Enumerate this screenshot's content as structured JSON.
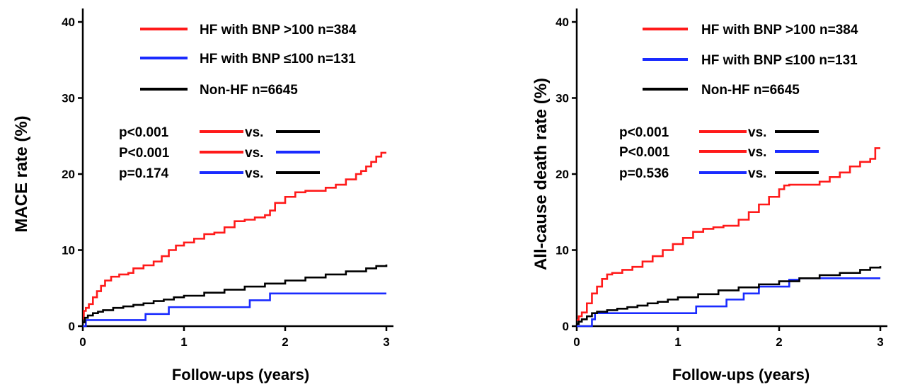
{
  "colors": {
    "red": "#ff1a1a",
    "blue": "#1a2bff",
    "black": "#000000"
  },
  "chart_data": [
    {
      "type": "line",
      "step": true,
      "title": "",
      "xlabel": "Follow-ups (years)",
      "ylabel": "MACE rate (%)",
      "xlim": [
        0,
        3
      ],
      "ylim": [
        0,
        40
      ],
      "xticks": [
        "0",
        "1",
        "2",
        "3"
      ],
      "yticks": [
        "0",
        "10",
        "20",
        "30",
        "40"
      ],
      "legend": [
        {
          "label": "HF with  BNP >100 n=384",
          "color": "red"
        },
        {
          "label": "HF with  BNP ≤100 n=131",
          "color": "blue"
        },
        {
          "label": "Non-HF  n=6645",
          "color": "black"
        }
      ],
      "comparisons": [
        {
          "p": "p<0.001",
          "a": "red",
          "b": "black",
          "vs": "vs."
        },
        {
          "p": "P<0.001",
          "a": "red",
          "b": "blue",
          "vs": "vs."
        },
        {
          "p": "p=0.174",
          "a": "blue",
          "b": "black",
          "vs": "vs."
        }
      ],
      "series": [
        {
          "name": "HF with BNP >100 n=384",
          "color": "red",
          "x": [
            0,
            0.01,
            0.03,
            0.06,
            0.1,
            0.14,
            0.18,
            0.22,
            0.28,
            0.36,
            0.45,
            0.5,
            0.6,
            0.7,
            0.78,
            0.85,
            0.92,
            1.0,
            1.1,
            1.2,
            1.3,
            1.4,
            1.5,
            1.6,
            1.7,
            1.8,
            1.85,
            1.9,
            2.0,
            2.1,
            2.2,
            2.3,
            2.4,
            2.5,
            2.6,
            2.7,
            2.75,
            2.8,
            2.85,
            2.9,
            2.95,
            3.0
          ],
          "y": [
            1.0,
            2.0,
            2.4,
            2.9,
            3.8,
            4.6,
            5.3,
            6.0,
            6.5,
            6.8,
            7.0,
            7.6,
            8.0,
            8.5,
            9.2,
            10.0,
            10.6,
            11.0,
            11.5,
            12.1,
            12.3,
            13.0,
            13.8,
            14.0,
            14.3,
            14.6,
            15.2,
            16.2,
            17.0,
            17.6,
            17.8,
            17.8,
            18.2,
            18.6,
            19.3,
            20.0,
            20.4,
            21.0,
            21.6,
            22.3,
            22.8,
            22.8
          ]
        },
        {
          "name": "HF with BNP ≤100 n=131",
          "color": "blue",
          "x": [
            0,
            0.03,
            0.62,
            0.85,
            1.65,
            1.85,
            3.0
          ],
          "y": [
            0,
            0.8,
            1.6,
            2.5,
            3.4,
            4.3,
            4.3
          ]
        },
        {
          "name": "Non-HF n=6645",
          "color": "black",
          "x": [
            0,
            0.02,
            0.05,
            0.1,
            0.15,
            0.2,
            0.3,
            0.4,
            0.5,
            0.6,
            0.7,
            0.8,
            0.9,
            1.0,
            1.2,
            1.4,
            1.6,
            1.8,
            2.0,
            2.2,
            2.4,
            2.6,
            2.8,
            2.9,
            3.0
          ],
          "y": [
            0.5,
            1.1,
            1.4,
            1.7,
            1.9,
            2.1,
            2.4,
            2.6,
            2.8,
            3.0,
            3.3,
            3.5,
            3.8,
            4.0,
            4.4,
            4.8,
            5.2,
            5.6,
            6.0,
            6.4,
            6.8,
            7.2,
            7.6,
            7.9,
            8.1
          ]
        }
      ]
    },
    {
      "type": "line",
      "step": true,
      "title": "",
      "xlabel": "Follow-ups (years)",
      "ylabel": "All-cause death rate (%)",
      "xlim": [
        0,
        3
      ],
      "ylim": [
        0,
        40
      ],
      "xticks": [
        "0",
        "1",
        "2",
        "3"
      ],
      "yticks": [
        "0",
        "10",
        "20",
        "30",
        "40"
      ],
      "legend": [
        {
          "label": "HF with  BNP >100 n=384",
          "color": "red"
        },
        {
          "label": "HF with  BNP ≤100 n=131",
          "color": "blue"
        },
        {
          "label": "Non-HF  n=6645",
          "color": "black"
        }
      ],
      "comparisons": [
        {
          "p": "p<0.001",
          "a": "red",
          "b": "black",
          "vs": "vs."
        },
        {
          "p": "P<0.001",
          "a": "red",
          "b": "blue",
          "vs": "vs."
        },
        {
          "p": "p=0.536",
          "a": "blue",
          "b": "black",
          "vs": "vs."
        }
      ],
      "series": [
        {
          "name": "HF with BNP >100 n=384",
          "color": "red",
          "x": [
            0,
            0.02,
            0.05,
            0.1,
            0.15,
            0.2,
            0.25,
            0.3,
            0.35,
            0.45,
            0.55,
            0.65,
            0.75,
            0.85,
            0.95,
            1.05,
            1.15,
            1.25,
            1.35,
            1.45,
            1.6,
            1.7,
            1.8,
            1.9,
            2.0,
            2.05,
            2.1,
            2.3,
            2.4,
            2.5,
            2.6,
            2.7,
            2.8,
            2.9,
            2.95,
            3.0
          ],
          "y": [
            0.8,
            1.3,
            1.8,
            3.0,
            4.3,
            5.2,
            6.2,
            6.8,
            7.0,
            7.4,
            7.8,
            8.5,
            9.2,
            10.0,
            10.8,
            11.6,
            12.4,
            12.8,
            13.0,
            13.2,
            14.0,
            15.0,
            16.0,
            17.0,
            18.0,
            18.5,
            18.6,
            18.6,
            19.0,
            19.6,
            20.2,
            21.0,
            21.6,
            22.0,
            23.4,
            23.4
          ]
        },
        {
          "name": "HF with BNP ≤100 n=131",
          "color": "blue",
          "x": [
            0,
            0.15,
            0.18,
            1.18,
            1.48,
            1.65,
            1.8,
            2.1,
            2.2,
            3.0
          ],
          "y": [
            0,
            0.9,
            1.7,
            2.6,
            3.5,
            4.3,
            5.2,
            6.1,
            6.3,
            6.3
          ]
        },
        {
          "name": "Non-HF n=6645",
          "color": "black",
          "x": [
            0,
            0.02,
            0.05,
            0.1,
            0.15,
            0.2,
            0.3,
            0.4,
            0.5,
            0.6,
            0.7,
            0.8,
            0.9,
            1.0,
            1.2,
            1.4,
            1.6,
            1.8,
            2.0,
            2.2,
            2.4,
            2.6,
            2.8,
            2.9,
            3.0
          ],
          "y": [
            0.3,
            0.6,
            0.9,
            1.3,
            1.7,
            1.9,
            2.1,
            2.3,
            2.5,
            2.7,
            3.0,
            3.2,
            3.5,
            3.8,
            4.2,
            4.7,
            5.1,
            5.5,
            5.9,
            6.3,
            6.7,
            7.0,
            7.4,
            7.7,
            7.9
          ]
        }
      ]
    }
  ]
}
